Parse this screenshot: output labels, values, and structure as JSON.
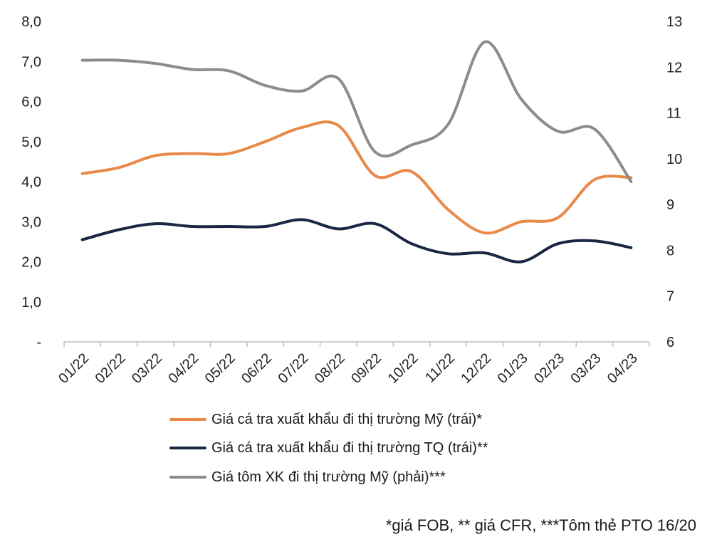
{
  "chart_data": {
    "type": "line",
    "categories": [
      "01/22",
      "02/22",
      "03/22",
      "04/22",
      "05/22",
      "06/22",
      "07/22",
      "08/22",
      "09/22",
      "10/22",
      "11/22",
      "12/22",
      "01/23",
      "02/23",
      "03/23",
      "04/23"
    ],
    "series": [
      {
        "name": "Giá cá tra xuất khẩu đi thị trường Mỹ (trái)*",
        "axis": "left",
        "color": "#E8894A",
        "values": [
          4.2,
          4.35,
          4.65,
          4.7,
          4.7,
          5.0,
          5.35,
          5.4,
          4.15,
          4.25,
          3.3,
          2.72,
          3.0,
          3.1,
          4.05,
          4.1
        ]
      },
      {
        "name": "Giá cá tra xuất khẩu đi thị trường TQ (trái)**",
        "axis": "left",
        "color": "#1A2744",
        "values": [
          2.55,
          2.8,
          2.95,
          2.88,
          2.88,
          2.88,
          3.05,
          2.82,
          2.95,
          2.45,
          2.2,
          2.22,
          2.0,
          2.45,
          2.52,
          2.35
        ]
      },
      {
        "name": "Giá tôm XK đi thị trường Mỹ (phải)***",
        "axis": "right",
        "color": "#8C8C8C",
        "values": [
          12.15,
          12.15,
          12.08,
          11.95,
          11.92,
          11.6,
          11.48,
          11.75,
          10.15,
          10.3,
          10.75,
          12.55,
          11.3,
          10.6,
          10.65,
          9.5
        ]
      }
    ],
    "y_left": {
      "min": 0,
      "max": 8,
      "ticks": [
        "-",
        "1,0",
        "2,0",
        "3,0",
        "4,0",
        "5,0",
        "6,0",
        "7,0",
        "8,0"
      ]
    },
    "y_right": {
      "min": 6,
      "max": 13,
      "ticks": [
        "6",
        "7",
        "8",
        "9",
        "10",
        "11",
        "12",
        "13"
      ]
    },
    "grid": false,
    "legend_position": "bottom",
    "footnote": "*giá FOB, ** giá CFR, ***Tôm thẻ PTO 16/20"
  }
}
